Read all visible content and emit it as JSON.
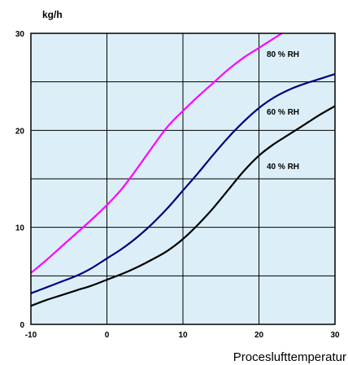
{
  "chart_data": {
    "type": "line",
    "ylabel": "kg/h",
    "xlabel": "Proceslufttemperatur",
    "xlim": [
      -10,
      30
    ],
    "ylim": [
      0,
      30
    ],
    "xticks": [
      -10,
      0,
      10,
      20,
      30
    ],
    "yticks": [
      0,
      10,
      20,
      30
    ],
    "grid": true,
    "plot_background": "#dcefF8",
    "series": [
      {
        "name": "80 % RH",
        "color": "#ff00ff",
        "x": [
          -10,
          -8,
          -6,
          -4,
          -2,
          0,
          2,
          4,
          6,
          8,
          10,
          12,
          14,
          16,
          18,
          20,
          22,
          23
        ],
        "y": [
          5.3,
          6.6,
          8.0,
          9.4,
          10.8,
          12.3,
          14.0,
          16.1,
          18.3,
          20.4,
          22.0,
          23.5,
          24.9,
          26.3,
          27.5,
          28.5,
          29.5,
          30.0
        ]
      },
      {
        "name": "60 % RH",
        "color": "#000080",
        "x": [
          -10,
          -8,
          -6,
          -4,
          -2,
          0,
          2,
          4,
          6,
          8,
          10,
          12,
          14,
          16,
          18,
          20,
          22,
          24,
          26,
          28,
          30
        ],
        "y": [
          3.2,
          3.8,
          4.4,
          5.0,
          5.8,
          6.8,
          7.8,
          9.0,
          10.4,
          12.0,
          13.8,
          15.6,
          17.5,
          19.3,
          20.9,
          22.3,
          23.4,
          24.2,
          24.8,
          25.3,
          25.8
        ]
      },
      {
        "name": "40 % RH",
        "color": "#000000",
        "x": [
          -10,
          -8,
          -6,
          -4,
          -2,
          0,
          2,
          4,
          6,
          8,
          10,
          12,
          14,
          16,
          18,
          20,
          22,
          24,
          26,
          28,
          30
        ],
        "y": [
          1.9,
          2.5,
          3.0,
          3.5,
          4.0,
          4.6,
          5.2,
          5.9,
          6.7,
          7.6,
          8.8,
          10.3,
          12.0,
          13.9,
          15.8,
          17.4,
          18.6,
          19.6,
          20.6,
          21.6,
          22.5
        ]
      }
    ]
  }
}
